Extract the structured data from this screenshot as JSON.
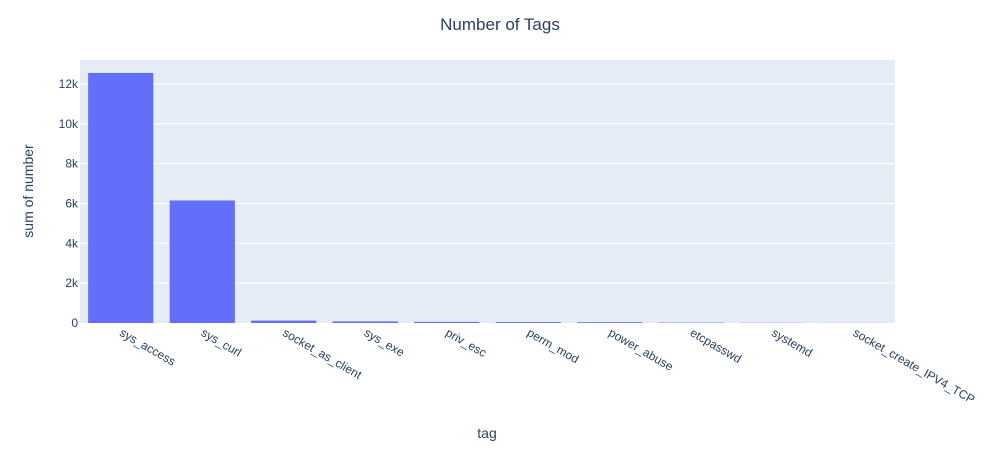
{
  "chart_data": {
    "type": "bar",
    "title": "Number of Tags",
    "xlabel": "tag",
    "ylabel": "sum of number",
    "categories": [
      "sys_access",
      "sys_curl",
      "socket_as_client",
      "sys_exe",
      "priv_esc",
      "perm_mod",
      "power_abuse",
      "etcpasswd",
      "systemd",
      "socket_create_IPV4_TCP"
    ],
    "values": [
      12550,
      6150,
      120,
      80,
      55,
      45,
      40,
      20,
      8,
      5
    ],
    "ylim": [
      0,
      13200
    ],
    "yticks": [
      0,
      2000,
      4000,
      6000,
      8000,
      10000,
      12000
    ],
    "ytick_labels": [
      "0",
      "2k",
      "4k",
      "6k",
      "8k",
      "10k",
      "12k"
    ],
    "grid": true,
    "colors": {
      "bar": "#636efa",
      "plot_bg": "#e5ecf6",
      "grid": "#ffffff",
      "text": "#2a3f5f"
    }
  }
}
